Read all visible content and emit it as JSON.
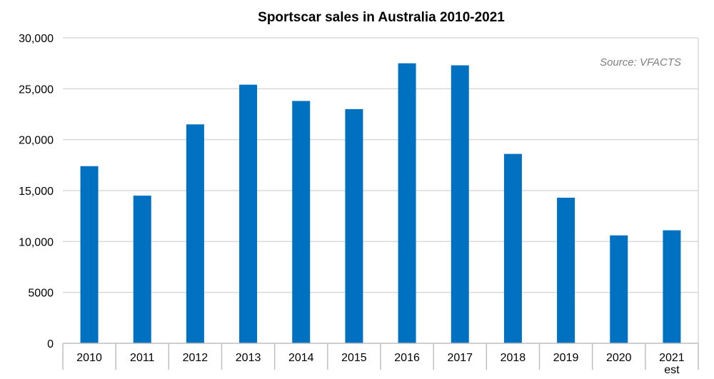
{
  "chart_data": {
    "type": "bar",
    "title": "Sportscar sales in Australia 2010-2021",
    "source": "Source: VFACTS",
    "categories": [
      "2010",
      "2011",
      "2012",
      "2013",
      "2014",
      "2015",
      "2016",
      "2017",
      "2018",
      "2019",
      "2020",
      "2021\nest"
    ],
    "values": [
      17400,
      14500,
      21500,
      25400,
      23800,
      23000,
      27500,
      27300,
      18600,
      14300,
      10600,
      11100
    ],
    "ylim": [
      0,
      30000
    ],
    "yticks": [
      0,
      5000,
      10000,
      15000,
      20000,
      25000,
      30000
    ],
    "ytick_labels": [
      "0",
      "5000",
      "10,000",
      "15,000",
      "20,000",
      "25,000",
      "30,000"
    ],
    "xlabel": "",
    "ylabel": "",
    "grid": true,
    "legend": "none",
    "bar_color": "#0070C0"
  }
}
